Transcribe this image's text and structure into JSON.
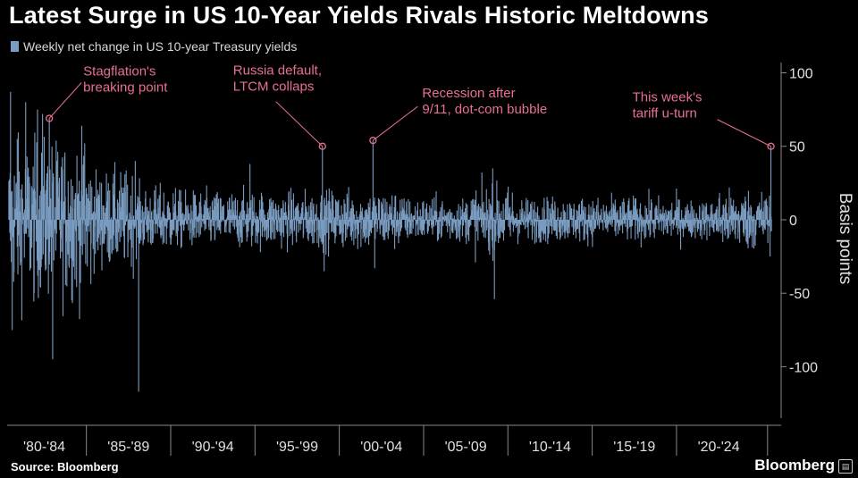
{
  "header": {
    "title": "Latest Surge in US 10-Year Yields Rivals Historic Meltdowns"
  },
  "footer": {
    "source": "Source: Bloomberg",
    "brand": "Bloomberg"
  },
  "colors": {
    "series": "#7a9cc0",
    "annotation": "#e8708f",
    "grid": "#555555",
    "axis_text": "#e0e0e0",
    "background": "#000000"
  },
  "chart_data": {
    "type": "bar",
    "legend_position": "top-left",
    "grid": false,
    "ylabel": "Basis points",
    "ylim": [
      -135,
      107
    ],
    "yticks": [
      100,
      50,
      0,
      -50,
      -100
    ],
    "xlim": [
      1980,
      2025.8
    ],
    "x_period_labels": [
      "'80-'84",
      "'85-'89",
      "'90-'94",
      "'95-'99",
      "'00-'04",
      "'05-'09",
      "'10-'14",
      "'15-'19",
      "'20-'24"
    ],
    "series": [
      {
        "name": "Weekly net change in US 10-year Treasury yields",
        "key_points": [
          {
            "x": 1980.2,
            "y": 87
          },
          {
            "x": 1980.3,
            "y": -75
          },
          {
            "x": 1980.6,
            "y": 55
          },
          {
            "x": 1981.1,
            "y": 80
          },
          {
            "x": 1981.6,
            "y": -50
          },
          {
            "x": 1981.8,
            "y": 75
          },
          {
            "x": 1982.1,
            "y": 72
          },
          {
            "x": 1982.5,
            "y": 69
          },
          {
            "x": 1982.7,
            "y": -95
          },
          {
            "x": 1984.6,
            "y": 52
          },
          {
            "x": 1987.8,
            "y": -117
          },
          {
            "x": 1987.6,
            "y": 40
          },
          {
            "x": 1994.4,
            "y": 38
          },
          {
            "x": 1998.7,
            "y": 50
          },
          {
            "x": 1998.8,
            "y": -35
          },
          {
            "x": 2001.7,
            "y": 54
          },
          {
            "x": 2001.8,
            "y": -33
          },
          {
            "x": 2008.9,
            "y": -54
          },
          {
            "x": 2008.8,
            "y": 35
          },
          {
            "x": 2025.3,
            "y": 50
          },
          {
            "x": 2025.25,
            "y": -25
          }
        ]
      }
    ],
    "annotations": [
      {
        "text": "Stagflation's breaking point",
        "lines": [
          "Stagflation's",
          "breaking point"
        ],
        "x": 1982.5,
        "y": 69
      },
      {
        "text": "Russia default, LTCM collaps",
        "lines": [
          "Russia default,",
          "LTCM collaps"
        ],
        "x": 1998.7,
        "y": 50
      },
      {
        "text": "Recession after 9/11, dot-com bubble",
        "lines": [
          "Recession after",
          "9/11, dot-com bubble"
        ],
        "x": 2001.7,
        "y": 54
      },
      {
        "text": "This week's tariff u-turn",
        "lines": [
          "This week's",
          "tariff u-turn"
        ],
        "x": 2025.3,
        "y": 50
      }
    ]
  }
}
